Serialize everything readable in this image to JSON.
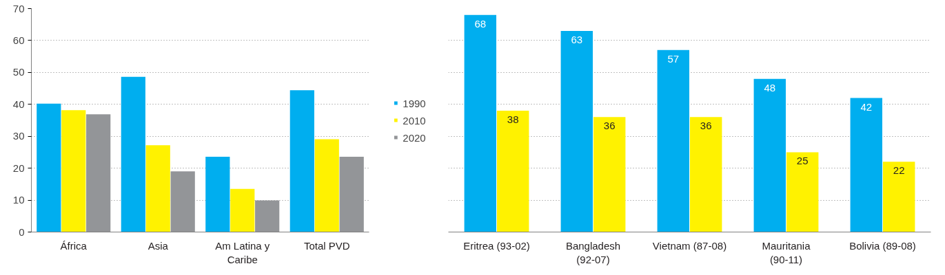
{
  "chart_data": [
    {
      "type": "bar",
      "categories": [
        "África",
        "Asia",
        "Am Latina y\nCaribe",
        "Total PVD"
      ],
      "ylim": [
        0,
        70
      ],
      "yticks": [
        0,
        10,
        20,
        30,
        40,
        50,
        60,
        70
      ],
      "grid": "y",
      "legend": "right",
      "series": [
        {
          "name": "1990",
          "color": "#00aeef",
          "values": [
            40.2,
            48.6,
            23.6,
            44.4
          ]
        },
        {
          "name": "2010",
          "color": "#fff200",
          "values": [
            38.2,
            27.2,
            13.5,
            29.1
          ]
        },
        {
          "name": "2020",
          "color": "#939598",
          "values": [
            36.9,
            19.0,
            9.9,
            23.6
          ]
        }
      ]
    },
    {
      "type": "bar",
      "categories": [
        "Eritrea (93-02)",
        "Bangladesh\n(92-07)",
        "Vietnam (87-08)",
        "Mauritania\n(90-11)",
        "Bolivia (89-08)"
      ],
      "ylim": [
        0,
        70
      ],
      "yticks": [
        0,
        10,
        20,
        30,
        40,
        50,
        60,
        70
      ],
      "grid": "y",
      "tick_labels": "x",
      "data_labels": true,
      "series": [
        {
          "color": "#00aeef",
          "values": [
            68,
            63,
            57,
            48,
            42
          ]
        },
        {
          "color": "#fff200",
          "values": [
            38,
            36,
            36,
            25,
            22
          ]
        }
      ]
    }
  ]
}
